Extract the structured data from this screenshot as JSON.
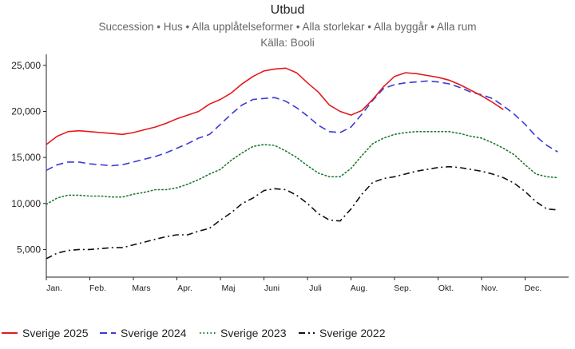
{
  "header": {
    "title": "Utbud",
    "subtitle": "Succession • Hus • Alla upplåtelseformer • Alla storlekar • Alla byggår • Alla rum",
    "source": "Källa: Booli"
  },
  "chart_data": {
    "type": "line",
    "title": "Utbud",
    "xlabel": "",
    "ylabel": "",
    "ylim": [
      2000,
      26200
    ],
    "xlim": [
      0,
      12
    ],
    "yticks": [
      5000,
      10000,
      15000,
      20000,
      25000
    ],
    "ytick_labels": [
      "5,000",
      "10,000",
      "15,000",
      "20,000",
      "25,000"
    ],
    "categories": [
      "Jan.",
      "Feb.",
      "Mars",
      "Apr.",
      "Maj",
      "Juni",
      "Juli",
      "Aug.",
      "Sep.",
      "Okt.",
      "Nov.",
      "Dec."
    ],
    "legend_position": "bottom",
    "series": [
      {
        "name": "Sverige 2025",
        "color": "#e31a1c",
        "dash": "solid",
        "x": [
          0,
          0.25,
          0.5,
          0.75,
          1,
          1.25,
          1.5,
          1.75,
          2,
          2.25,
          2.5,
          2.75,
          3,
          3.25,
          3.5,
          3.75,
          4,
          4.25,
          4.5,
          4.75,
          5,
          5.25,
          5.5,
          5.75,
          6,
          6.25,
          6.5,
          6.75,
          7,
          7.25,
          7.5,
          7.75,
          8,
          8.25,
          8.5,
          8.75,
          9,
          9.25,
          9.5,
          9.75,
          10,
          10.25,
          10.5
        ],
        "y": [
          16400,
          17300,
          17800,
          17900,
          17800,
          17700,
          17600,
          17500,
          17700,
          18000,
          18300,
          18700,
          19200,
          19600,
          20000,
          20800,
          21300,
          22000,
          23000,
          23800,
          24400,
          24600,
          24700,
          24200,
          23100,
          22100,
          20700,
          20000,
          19600,
          20100,
          21300,
          22700,
          23800,
          24200,
          24100,
          23900,
          23700,
          23400,
          22900,
          22300,
          21700,
          21000,
          20200
        ]
      },
      {
        "name": "Sverige 2024",
        "color": "#3b3bd6",
        "dash": "long-dash",
        "x": [
          0,
          0.25,
          0.5,
          0.75,
          1,
          1.25,
          1.5,
          1.75,
          2,
          2.25,
          2.5,
          2.75,
          3,
          3.25,
          3.5,
          3.75,
          4,
          4.25,
          4.5,
          4.75,
          5,
          5.25,
          5.5,
          5.75,
          6,
          6.25,
          6.5,
          6.75,
          7,
          7.25,
          7.5,
          7.75,
          8,
          8.25,
          8.5,
          8.75,
          9,
          9.25,
          9.5,
          9.75,
          10,
          10.25,
          10.5,
          10.75,
          11,
          11.25,
          11.5,
          11.75
        ],
        "y": [
          13600,
          14200,
          14500,
          14500,
          14300,
          14200,
          14100,
          14200,
          14500,
          14800,
          15100,
          15500,
          16000,
          16500,
          17100,
          17500,
          18600,
          19700,
          20700,
          21300,
          21400,
          21500,
          21100,
          20400,
          19500,
          18500,
          17800,
          17700,
          18300,
          19700,
          21200,
          22500,
          22900,
          23100,
          23200,
          23300,
          23200,
          23000,
          22600,
          22100,
          21800,
          21400,
          20600,
          19700,
          18600,
          17300,
          16300,
          15600
        ]
      },
      {
        "name": "Sverige 2023",
        "color": "#1a7a2e",
        "dash": "dotted",
        "x": [
          0,
          0.25,
          0.5,
          0.75,
          1,
          1.25,
          1.5,
          1.75,
          2,
          2.25,
          2.5,
          2.75,
          3,
          3.25,
          3.5,
          3.75,
          4,
          4.25,
          4.5,
          4.75,
          5,
          5.25,
          5.5,
          5.75,
          6,
          6.25,
          6.5,
          6.75,
          7,
          7.25,
          7.5,
          7.75,
          8,
          8.25,
          8.5,
          8.75,
          9,
          9.25,
          9.5,
          9.75,
          10,
          10.25,
          10.5,
          10.75,
          11,
          11.25,
          11.5,
          11.75
        ],
        "y": [
          9900,
          10600,
          10900,
          10900,
          10800,
          10800,
          10700,
          10700,
          11000,
          11200,
          11500,
          11500,
          11700,
          12100,
          12600,
          13200,
          13700,
          14700,
          15500,
          16200,
          16400,
          16300,
          15700,
          15000,
          14100,
          13300,
          12900,
          12900,
          13800,
          15200,
          16500,
          17100,
          17500,
          17700,
          17800,
          17800,
          17800,
          17800,
          17600,
          17300,
          17100,
          16600,
          16000,
          15300,
          14200,
          13200,
          12900,
          12800
        ]
      },
      {
        "name": "Sverige 2022",
        "color": "#111111",
        "dash": "dash-dot",
        "x": [
          0,
          0.25,
          0.5,
          0.75,
          1,
          1.25,
          1.5,
          1.75,
          2,
          2.25,
          2.5,
          2.75,
          3,
          3.25,
          3.5,
          3.75,
          4,
          4.25,
          4.5,
          4.75,
          5,
          5.25,
          5.5,
          5.75,
          6,
          6.25,
          6.5,
          6.75,
          7,
          7.25,
          7.5,
          7.75,
          8,
          8.25,
          8.5,
          8.75,
          9,
          9.25,
          9.5,
          9.75,
          10,
          10.25,
          10.5,
          10.75,
          11,
          11.25,
          11.5,
          11.75
        ],
        "y": [
          4000,
          4600,
          4900,
          5000,
          5000,
          5100,
          5200,
          5200,
          5500,
          5800,
          6100,
          6400,
          6600,
          6600,
          7000,
          7300,
          8200,
          9000,
          10000,
          10600,
          11400,
          11600,
          11500,
          10900,
          10000,
          8900,
          8200,
          8100,
          9400,
          11000,
          12300,
          12700,
          12900,
          13200,
          13500,
          13700,
          13900,
          14000,
          13900,
          13700,
          13500,
          13200,
          12800,
          12200,
          11300,
          10200,
          9400,
          9300
        ]
      }
    ]
  }
}
